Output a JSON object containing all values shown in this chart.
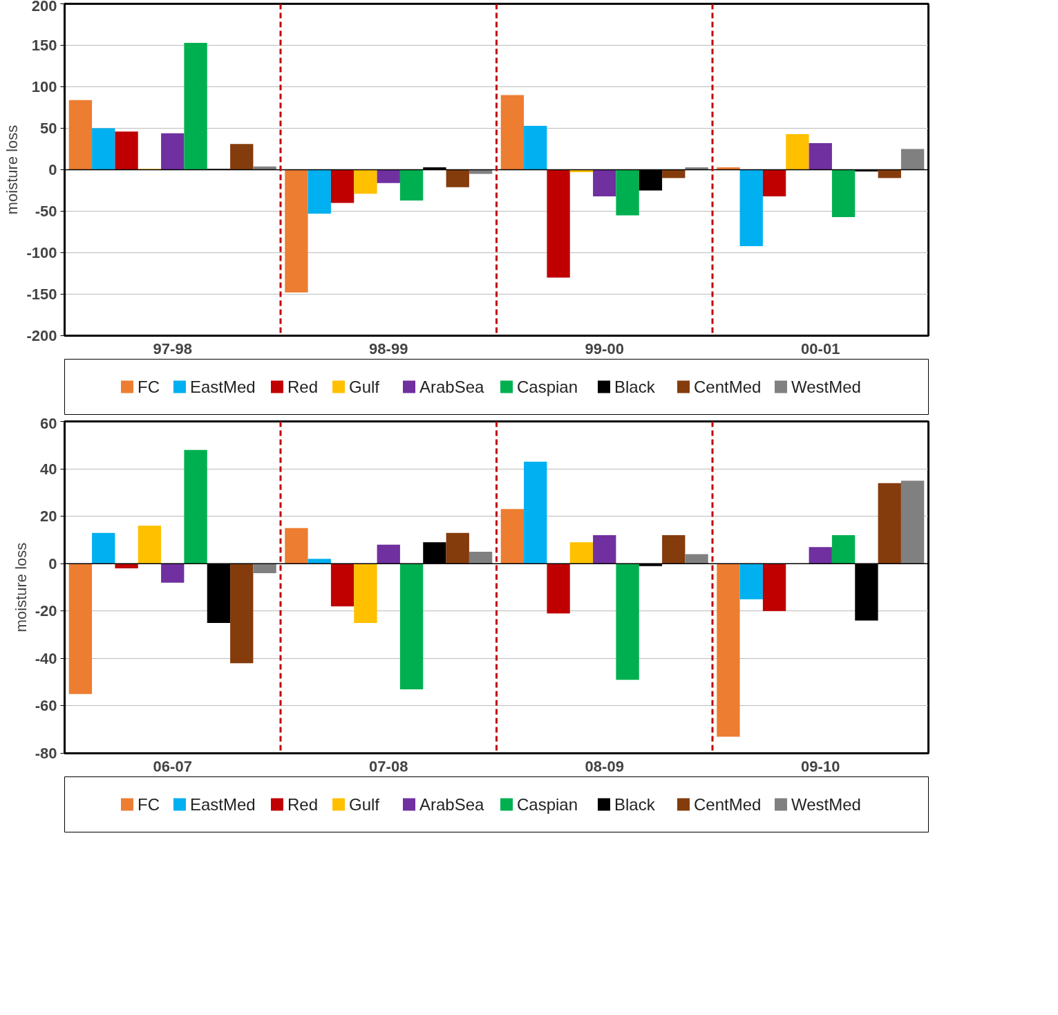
{
  "chart_data": [
    {
      "type": "bar",
      "ylabel": "moisture loss",
      "categories": [
        "97-98",
        "98-99",
        "99-00",
        "00-01"
      ],
      "ylim": [
        -200,
        200
      ],
      "yticks": [
        -200,
        -150,
        -100,
        -50,
        0,
        50,
        100,
        150,
        200
      ],
      "grid": "y",
      "legend": "bottom",
      "series": [
        {
          "name": "FC",
          "color": "#ed7d31",
          "values": [
            84,
            -148,
            90,
            3
          ]
        },
        {
          "name": "EastMed",
          "color": "#00b0f0",
          "values": [
            50,
            -53,
            53,
            -92
          ]
        },
        {
          "name": "Red",
          "color": "#c00000",
          "values": [
            46,
            -40,
            -130,
            -32
          ]
        },
        {
          "name": "Gulf",
          "color": "#ffc000",
          "values": [
            1,
            -29,
            -3,
            43
          ]
        },
        {
          "name": "ArabSea",
          "color": "#7030a0",
          "values": [
            44,
            -16,
            -32,
            32
          ]
        },
        {
          "name": "Caspian",
          "color": "#00b050",
          "values": [
            153,
            -37,
            -55,
            -57
          ]
        },
        {
          "name": "Black",
          "color": "#000000",
          "values": [
            1,
            3,
            -25,
            -2
          ]
        },
        {
          "name": "CentMed",
          "color": "#843c0c",
          "values": [
            31,
            -21,
            -10,
            -10
          ]
        },
        {
          "name": "WestMed",
          "color": "#808080",
          "values": [
            4,
            -5,
            3,
            25
          ]
        }
      ]
    },
    {
      "type": "bar",
      "ylabel": "moisture loss",
      "categories": [
        "06-07",
        "07-08",
        "08-09",
        "09-10"
      ],
      "ylim": [
        -80,
        60
      ],
      "yticks": [
        -80,
        -60,
        -40,
        -20,
        0,
        20,
        40,
        60
      ],
      "grid": "y",
      "legend": "bottom",
      "series": [
        {
          "name": "FC",
          "color": "#ed7d31",
          "values": [
            -55,
            15,
            23,
            -73
          ]
        },
        {
          "name": "EastMed",
          "color": "#00b0f0",
          "values": [
            13,
            2,
            43,
            -15
          ]
        },
        {
          "name": "Red",
          "color": "#c00000",
          "values": [
            -2,
            -18,
            -21,
            -20
          ]
        },
        {
          "name": "Gulf",
          "color": "#ffc000",
          "values": [
            16,
            -25,
            9,
            0
          ]
        },
        {
          "name": "ArabSea",
          "color": "#7030a0",
          "values": [
            -8,
            8,
            12,
            7
          ]
        },
        {
          "name": "Caspian",
          "color": "#00b050",
          "values": [
            48,
            -53,
            -49,
            12
          ]
        },
        {
          "name": "Black",
          "color": "#000000",
          "values": [
            -25,
            9,
            -1,
            -24
          ]
        },
        {
          "name": "CentMed",
          "color": "#843c0c",
          "values": [
            -42,
            13,
            12,
            34
          ]
        },
        {
          "name": "WestMed",
          "color": "#808080",
          "values": [
            -4,
            5,
            4,
            35
          ]
        }
      ]
    }
  ]
}
